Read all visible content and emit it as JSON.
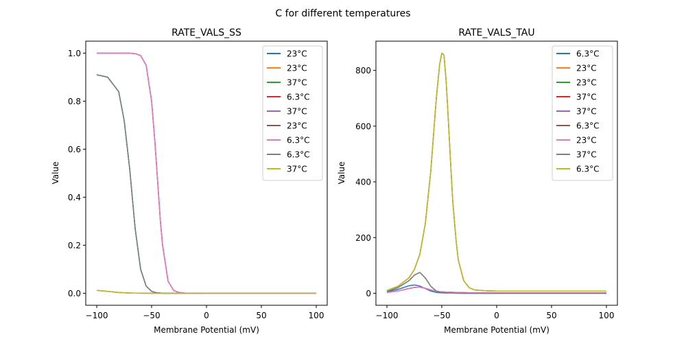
{
  "figure": {
    "suptitle": "C for different temperatures"
  },
  "chart_data": [
    {
      "type": "line",
      "title": "RATE_VALS_SS",
      "xlabel": "Membrane Potential (mV)",
      "ylabel": "Value",
      "xlim": [
        -110,
        110
      ],
      "ylim": [
        -0.05,
        1.05
      ],
      "xticks": [
        -100,
        -50,
        0,
        50,
        100
      ],
      "xtick_labels": [
        "−100",
        "−50",
        "0",
        "50",
        "100"
      ],
      "yticks": [
        0.0,
        0.2,
        0.4,
        0.6,
        0.8,
        1.0
      ],
      "ytick_labels": [
        "0.0",
        "0.2",
        "0.4",
        "0.6",
        "0.8",
        "1.0"
      ],
      "legend_position": "top-right",
      "x": [
        -100,
        -90,
        -80,
        -75,
        -70,
        -65,
        -60,
        -55,
        -50,
        -47,
        -45,
        -42,
        -40,
        -35,
        -30,
        -25,
        -20,
        0,
        50,
        100
      ],
      "series": [
        {
          "name": "23°C",
          "color": "#1f77b4",
          "values": [
            0.91,
            0.9,
            0.84,
            0.72,
            0.52,
            0.27,
            0.1,
            0.03,
            0.008,
            0.004,
            0.002,
            0.001,
            0.0,
            0,
            0,
            0,
            0,
            0,
            0,
            0
          ]
        },
        {
          "name": "23°C",
          "color": "#ff7f0e",
          "values": [
            0.012,
            0.008,
            0.003,
            0.002,
            0.001,
            0.0005,
            0.0003,
            0.0002,
            0.0001,
            0,
            0,
            0,
            0,
            0,
            0,
            0,
            0,
            0,
            0,
            0
          ]
        },
        {
          "name": "37°C",
          "color": "#2ca02c",
          "values": [
            0.91,
            0.9,
            0.84,
            0.72,
            0.52,
            0.27,
            0.1,
            0.03,
            0.008,
            0.004,
            0.002,
            0.001,
            0.0,
            0,
            0,
            0,
            0,
            0,
            0,
            0
          ]
        },
        {
          "name": "6.3°C",
          "color": "#d62728",
          "values": [
            1.0,
            1.0,
            1.0,
            1.0,
            1.0,
            0.998,
            0.99,
            0.95,
            0.8,
            0.63,
            0.5,
            0.3,
            0.2,
            0.05,
            0.012,
            0.003,
            0.001,
            0,
            0,
            0
          ]
        },
        {
          "name": "37°C",
          "color": "#9467bd",
          "values": [
            1.0,
            1.0,
            1.0,
            1.0,
            1.0,
            0.998,
            0.99,
            0.95,
            0.8,
            0.63,
            0.5,
            0.3,
            0.2,
            0.05,
            0.012,
            0.003,
            0.001,
            0,
            0,
            0
          ]
        },
        {
          "name": "23°C",
          "color": "#8c564b",
          "values": [
            0.012,
            0.008,
            0.003,
            0.002,
            0.001,
            0.0005,
            0.0003,
            0.0002,
            0.0001,
            0,
            0,
            0,
            0,
            0,
            0,
            0,
            0,
            0,
            0,
            0
          ]
        },
        {
          "name": "6.3°C",
          "color": "#e377c2",
          "values": [
            1.0,
            1.0,
            1.0,
            1.0,
            1.0,
            0.998,
            0.99,
            0.95,
            0.8,
            0.63,
            0.5,
            0.3,
            0.2,
            0.05,
            0.012,
            0.003,
            0.001,
            0,
            0,
            0
          ]
        },
        {
          "name": "6.3°C",
          "color": "#7f7f7f",
          "values": [
            0.91,
            0.9,
            0.84,
            0.72,
            0.52,
            0.27,
            0.1,
            0.03,
            0.008,
            0.004,
            0.002,
            0.001,
            0.0,
            0,
            0,
            0,
            0,
            0,
            0,
            0
          ]
        },
        {
          "name": "37°C",
          "color": "#bcbd22",
          "values": [
            0.012,
            0.008,
            0.003,
            0.002,
            0.001,
            0.0005,
            0.0003,
            0.0002,
            0.0001,
            0,
            0,
            0,
            0,
            0,
            0,
            0,
            0,
            0,
            0,
            0
          ]
        }
      ]
    },
    {
      "type": "line",
      "title": "RATE_VALS_TAU",
      "xlabel": "Membrane Potential (mV)",
      "ylabel": "Value",
      "xlim": [
        -110,
        110
      ],
      "ylim": [
        -43,
        905
      ],
      "xticks": [
        -100,
        -50,
        0,
        50,
        100
      ],
      "xtick_labels": [
        "−100",
        "−50",
        "0",
        "50",
        "100"
      ],
      "yticks": [
        0,
        200,
        400,
        600,
        800
      ],
      "ytick_labels": [
        "0",
        "200",
        "400",
        "600",
        "800"
      ],
      "legend_position": "top-right",
      "x": [
        -100,
        -90,
        -80,
        -75,
        -70,
        -65,
        -60,
        -55,
        -52,
        -50,
        -48,
        -46,
        -44,
        -42,
        -40,
        -37,
        -35,
        -30,
        -25,
        -20,
        -10,
        0,
        50,
        100
      ],
      "series": [
        {
          "name": "6.3°C",
          "color": "#1f77b4",
          "values": [
            6,
            14,
            27,
            30,
            26,
            17,
            8,
            3,
            2,
            1.5,
            1,
            1,
            0.8,
            0.6,
            0.5,
            0.4,
            0.3,
            0.2,
            0.1,
            0.1,
            0,
            0,
            0,
            0
          ]
        },
        {
          "name": "23°C",
          "color": "#ff7f0e",
          "values": [
            10,
            25,
            55,
            85,
            140,
            250,
            440,
            700,
            820,
            862,
            855,
            760,
            620,
            470,
            330,
            190,
            120,
            45,
            20,
            12,
            9,
            8,
            8,
            8
          ]
        },
        {
          "name": "23°C",
          "color": "#2ca02c",
          "values": [
            8,
            20,
            45,
            65,
            75,
            55,
            25,
            8,
            4,
            3,
            2,
            1.5,
            1,
            0.8,
            0.6,
            0.4,
            0.3,
            0.2,
            0.1,
            0.1,
            0,
            0,
            0,
            0
          ]
        },
        {
          "name": "37°C",
          "color": "#d62728",
          "values": [
            3,
            8,
            17,
            21,
            22,
            18,
            12,
            8,
            6,
            5,
            5,
            4.5,
            4,
            4,
            3.5,
            3,
            3,
            2.5,
            2,
            2,
            2,
            2,
            2,
            2
          ]
        },
        {
          "name": "37°C",
          "color": "#9467bd",
          "values": [
            3,
            8,
            17,
            21,
            22,
            18,
            12,
            8,
            6,
            5,
            5,
            4.5,
            4,
            4,
            3.5,
            3,
            3,
            2.5,
            2,
            2,
            2,
            2,
            2,
            2
          ]
        },
        {
          "name": "6.3°C",
          "color": "#8c564b",
          "values": [
            10,
            25,
            55,
            85,
            140,
            250,
            440,
            700,
            820,
            862,
            855,
            760,
            620,
            470,
            330,
            190,
            120,
            45,
            20,
            12,
            9,
            8,
            8,
            8
          ]
        },
        {
          "name": "23°C",
          "color": "#e377c2",
          "values": [
            3,
            8,
            17,
            21,
            22,
            18,
            12,
            8,
            6,
            5,
            5,
            4.5,
            4,
            4,
            3.5,
            3,
            3,
            2.5,
            2,
            2,
            2,
            2,
            2,
            2
          ]
        },
        {
          "name": "37°C",
          "color": "#7f7f7f",
          "values": [
            8,
            20,
            45,
            65,
            75,
            55,
            25,
            8,
            4,
            3,
            2,
            1.5,
            1,
            0.8,
            0.6,
            0.4,
            0.3,
            0.2,
            0.1,
            0.1,
            0,
            0,
            0,
            0
          ]
        },
        {
          "name": "6.3°C",
          "color": "#bcbd22",
          "values": [
            10,
            25,
            55,
            85,
            140,
            250,
            440,
            700,
            820,
            862,
            855,
            760,
            620,
            470,
            330,
            190,
            120,
            45,
            20,
            12,
            9,
            8,
            8,
            8
          ]
        }
      ]
    }
  ]
}
